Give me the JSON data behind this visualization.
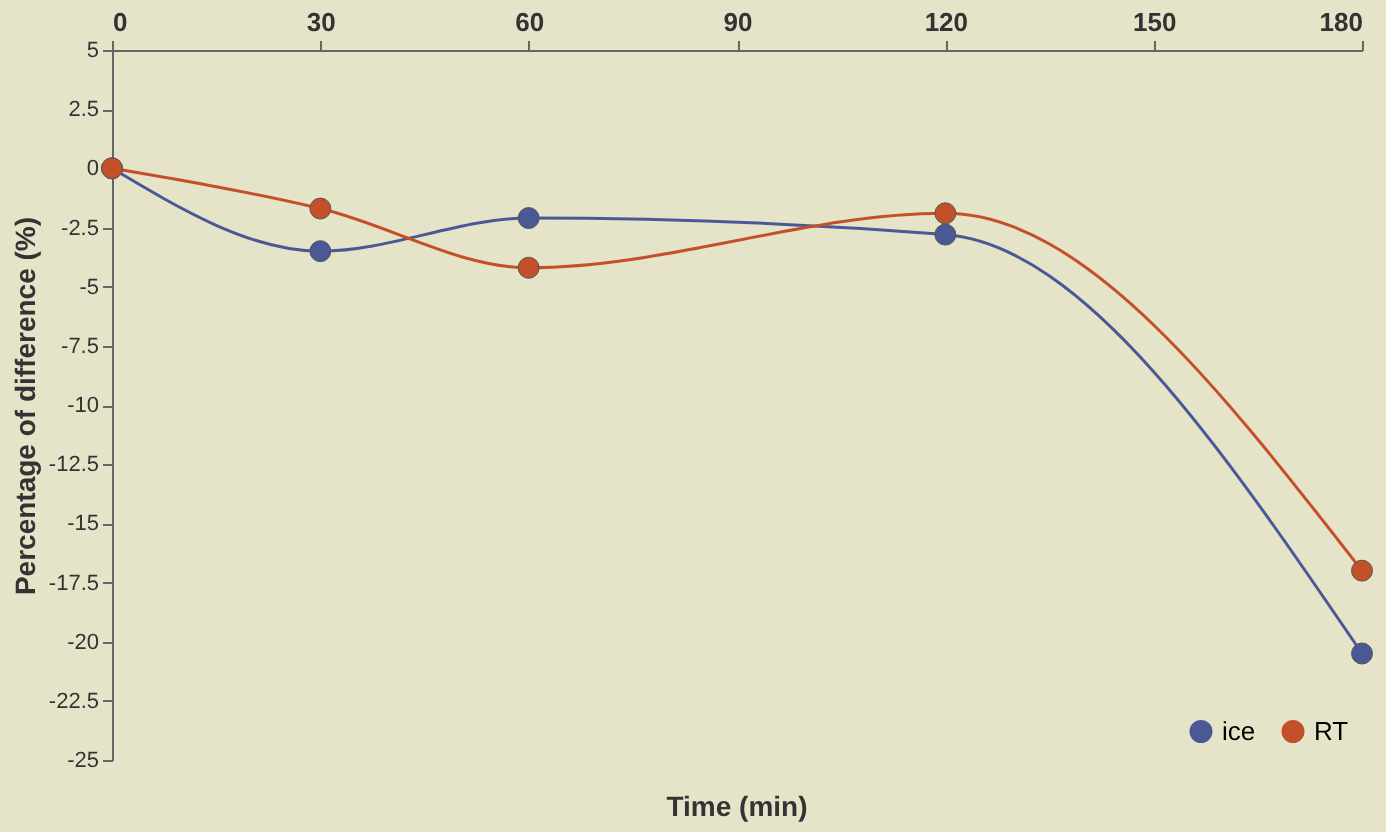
{
  "chart_data": {
    "type": "line",
    "xlabel": "Time (min)",
    "ylabel": "Percentage of difference (%)",
    "x": [
      0,
      30,
      60,
      120,
      180
    ],
    "series": [
      {
        "name": "ice",
        "color": "#4b5896",
        "values": [
          0,
          -3.5,
          -2.1,
          -2.8,
          -20.5
        ]
      },
      {
        "name": "RT",
        "color": "#c4502a",
        "values": [
          0,
          -1.7,
          -4.2,
          -1.9,
          -17
        ]
      }
    ],
    "xlim": [
      0,
      180
    ],
    "xticks": [
      0,
      30,
      60,
      90,
      120,
      150,
      180
    ],
    "ylim": [
      -25,
      5
    ],
    "yticks": [
      5,
      2.5,
      0,
      -2.5,
      -5,
      -7.5,
      -10,
      -12.5,
      -15,
      -17.5,
      -20,
      -22.5,
      -25
    ],
    "grid": false,
    "legend": "bottom right",
    "marker": "circle",
    "line_style": "solid"
  }
}
